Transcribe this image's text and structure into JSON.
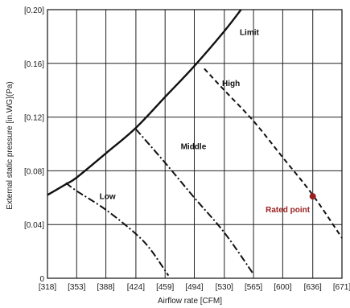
{
  "chart_data": {
    "type": "line",
    "title": "",
    "xlabel": "Airflow rate [CFM]",
    "ylabel": "External static pressure [in.WG](Pa)",
    "x_ticks": [
      318,
      353,
      388,
      424,
      459,
      494,
      530,
      565,
      600,
      636,
      671
    ],
    "x_tick_labels": [
      "[318]",
      "[353]",
      "[388]",
      "[424]",
      "[459]",
      "[494]",
      "[530]",
      "[565]",
      "[600]",
      "[636]",
      "[671]"
    ],
    "y_ticks": [
      0,
      0.04,
      0.08,
      0.12,
      0.16,
      0.2
    ],
    "y_tick_labels": [
      "0",
      "[0.04]",
      "[0.08]",
      "[0.12]",
      "[0.16]",
      "[0.20]"
    ],
    "xlim": [
      318,
      671
    ],
    "ylim": [
      0,
      0.2
    ],
    "grid": true,
    "series": [
      {
        "name": "Limit",
        "style": "solid",
        "points": [
          [
            318,
            0.062
          ],
          [
            340,
            0.07
          ],
          [
            353,
            0.075
          ],
          [
            388,
            0.093
          ],
          [
            424,
            0.112
          ],
          [
            459,
            0.135
          ],
          [
            494,
            0.158
          ],
          [
            530,
            0.184
          ],
          [
            550,
            0.2
          ]
        ]
      },
      {
        "name": "High",
        "style": "dashed",
        "points": [
          [
            506,
            0.156
          ],
          [
            530,
            0.14
          ],
          [
            565,
            0.117
          ],
          [
            600,
            0.09
          ],
          [
            636,
            0.062
          ],
          [
            671,
            0.03
          ]
        ]
      },
      {
        "name": "Middle",
        "style": "dashdot",
        "points": [
          [
            424,
            0.111
          ],
          [
            459,
            0.086
          ],
          [
            494,
            0.06
          ],
          [
            530,
            0.034
          ],
          [
            565,
            0.003
          ]
        ]
      },
      {
        "name": "Low",
        "style": "dashdot",
        "points": [
          [
            340,
            0.071
          ],
          [
            353,
            0.065
          ],
          [
            388,
            0.051
          ],
          [
            424,
            0.033
          ],
          [
            442,
            0.021
          ],
          [
            463,
            0.002
          ]
        ]
      }
    ],
    "annotations": [
      {
        "text": "Limit",
        "x": 560,
        "y": 0.181
      },
      {
        "text": "High",
        "x": 538,
        "y": 0.143
      },
      {
        "text": "Middle",
        "x": 493,
        "y": 0.096
      },
      {
        "text": "Low",
        "x": 390,
        "y": 0.059
      }
    ],
    "rated_point": {
      "label": "Rated point",
      "x": 636,
      "y": 0.061,
      "label_x": 606,
      "label_y": 0.049
    },
    "colors": {
      "line": "#111111",
      "grid": "#222222",
      "rated": "#9a2020"
    }
  }
}
